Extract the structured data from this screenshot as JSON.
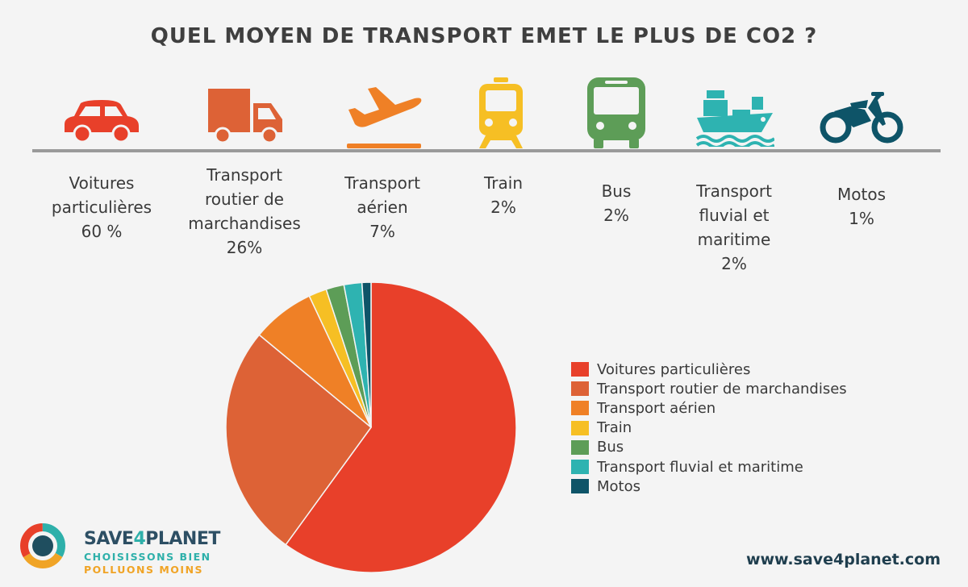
{
  "title": "QUEL MOYEN DE TRANSPORT EMET LE PLUS DE CO2 ?",
  "categories": [
    {
      "lines": [
        "Voitures",
        "particulières",
        "60 %"
      ],
      "icon": "car-icon",
      "color": "#e8402a"
    },
    {
      "lines": [
        "Transport",
        "routier de",
        "marchandises",
        "26%"
      ],
      "icon": "truck-icon",
      "color": "#dd6236"
    },
    {
      "lines": [
        "Transport",
        "aérien",
        "7%"
      ],
      "icon": "airplane-icon",
      "color": "#ef8026"
    },
    {
      "lines": [
        "Train",
        "2%"
      ],
      "icon": "train-icon",
      "color": "#f6bf24"
    },
    {
      "lines": [
        "Bus",
        "2%"
      ],
      "icon": "bus-icon",
      "color": "#5d9d57"
    },
    {
      "lines": [
        "Transport",
        "fluvial et",
        "maritime",
        "2%"
      ],
      "icon": "ship-icon",
      "color": "#2eb3b1"
    },
    {
      "lines": [
        "Motos",
        "1%"
      ],
      "icon": "motorcycle-icon",
      "color": "#0e5468"
    }
  ],
  "chart_data": {
    "type": "pie",
    "title": "",
    "categories": [
      "Voitures particulières",
      "Transport routier de marchandises",
      "Transport aérien",
      "Train",
      "Bus",
      "Transport fluvial et maritime",
      "Motos"
    ],
    "values": [
      60,
      26,
      7,
      2,
      2,
      2,
      1
    ],
    "colors": [
      "#e8402a",
      "#dd6236",
      "#ef8026",
      "#f6bf24",
      "#5d9d57",
      "#2eb3b1",
      "#0e5468"
    ],
    "legend": "right"
  },
  "brand": {
    "name_part1": "SAVE",
    "name_part2": "4",
    "name_part3": "PLANET",
    "tagline1": "CHOISISSONS BIEN",
    "tagline2": "POLLUONS MOINS"
  },
  "url": "www.save4planet.com"
}
